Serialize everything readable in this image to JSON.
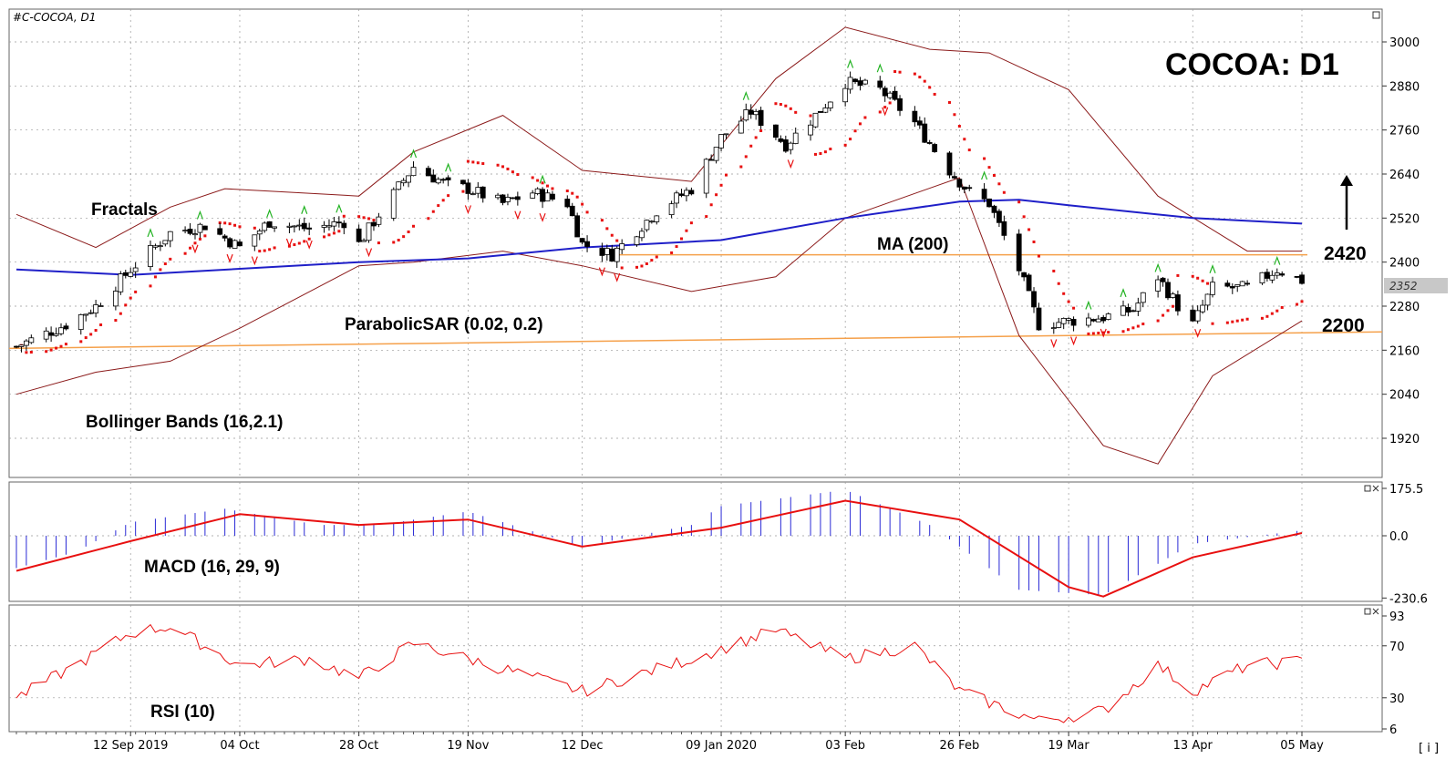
{
  "window": {
    "symbol_label": "#C-COCOA, D1",
    "title": "COCOA: D1",
    "footer_icon_label": "[ i ]"
  },
  "colors": {
    "bull_candle": "#ffffff",
    "bear_candle": "#000000",
    "ma": "#1f1fc8",
    "bollinger": "#8b1a1a",
    "sar": "#e81010",
    "fractal_up": "#22b322",
    "fractal_down": "#e81010",
    "level": "#f5a04a",
    "macd_hist": "#2a2ad6",
    "macd_signal": "#e81010",
    "rsi": "#e81010",
    "arrow": "#000000"
  },
  "annotations": {
    "fractals": "Fractals",
    "ma": "MA (200)",
    "sar": "ParabolicSAR (0.02, 0.2)",
    "bollinger": "Bollinger Bands (16,2.1)",
    "macd": "MACD (16, 29, 9)",
    "rsi": "RSI (10)",
    "resistance": "2420",
    "support": "2200",
    "current_price_tag": "2352"
  },
  "chart_data": [
    {
      "type": "candlestick",
      "panel": "price",
      "symbol": "#C-COCOA",
      "timeframe": "D1",
      "ylim": [
        1820,
        3100
      ],
      "y_ticks": [
        1920,
        2040,
        2160,
        2280,
        2400,
        2520,
        2640,
        2760,
        2880,
        3000
      ],
      "x_ticks": [
        "12 Sep 2019",
        "04 Oct",
        "28 Oct",
        "19 Nov",
        "12 Dec",
        "09 Jan 2020",
        "03 Feb",
        "26 Feb",
        "19 Mar",
        "13 Apr",
        "05 May"
      ],
      "close_anchors": [
        {
          "date": "2019-08-20",
          "close": 2170
        },
        {
          "date": "2019-08-30",
          "close": 2230
        },
        {
          "date": "2019-09-05",
          "close": 2280
        },
        {
          "date": "2019-09-12",
          "close": 2380
        },
        {
          "date": "2019-09-20",
          "close": 2480
        },
        {
          "date": "2019-09-27",
          "close": 2500
        },
        {
          "date": "2019-10-04",
          "close": 2440
        },
        {
          "date": "2019-10-10",
          "close": 2510
        },
        {
          "date": "2019-10-18",
          "close": 2490
        },
        {
          "date": "2019-10-25",
          "close": 2510
        },
        {
          "date": "2019-10-28",
          "close": 2450
        },
        {
          "date": "2019-11-01",
          "close": 2530
        },
        {
          "date": "2019-11-08",
          "close": 2660
        },
        {
          "date": "2019-11-15",
          "close": 2610
        },
        {
          "date": "2019-11-19",
          "close": 2600
        },
        {
          "date": "2019-11-26",
          "close": 2560
        },
        {
          "date": "2019-12-02",
          "close": 2590
        },
        {
          "date": "2019-12-09",
          "close": 2560
        },
        {
          "date": "2019-12-12",
          "close": 2450
        },
        {
          "date": "2019-12-18",
          "close": 2420
        },
        {
          "date": "2019-12-27",
          "close": 2540
        },
        {
          "date": "2020-01-03",
          "close": 2600
        },
        {
          "date": "2020-01-09",
          "close": 2740
        },
        {
          "date": "2020-01-15",
          "close": 2810
        },
        {
          "date": "2020-01-22",
          "close": 2720
        },
        {
          "date": "2020-01-28",
          "close": 2800
        },
        {
          "date": "2020-02-03",
          "close": 2890
        },
        {
          "date": "2020-02-10",
          "close": 2870
        },
        {
          "date": "2020-02-17",
          "close": 2780
        },
        {
          "date": "2020-02-24",
          "close": 2650
        },
        {
          "date": "2020-02-28",
          "close": 2590
        },
        {
          "date": "2020-03-03",
          "close": 2560
        },
        {
          "date": "2020-03-09",
          "close": 2380
        },
        {
          "date": "2020-03-13",
          "close": 2230
        },
        {
          "date": "2020-03-19",
          "close": 2240
        },
        {
          "date": "2020-03-26",
          "close": 2250
        },
        {
          "date": "2020-04-01",
          "close": 2270
        },
        {
          "date": "2020-04-06",
          "close": 2360
        },
        {
          "date": "2020-04-10",
          "close": 2280
        },
        {
          "date": "2020-04-13",
          "close": 2230
        },
        {
          "date": "2020-04-17",
          "close": 2330
        },
        {
          "date": "2020-04-24",
          "close": 2330
        },
        {
          "date": "2020-04-30",
          "close": 2380
        },
        {
          "date": "2020-05-05",
          "close": 2350
        }
      ],
      "ma200": [
        {
          "date": "2019-08-20",
          "value": 2380
        },
        {
          "date": "2019-09-12",
          "value": 2365
        },
        {
          "date": "2019-10-28",
          "value": 2400
        },
        {
          "date": "2019-11-19",
          "value": 2410
        },
        {
          "date": "2019-12-12",
          "value": 2440
        },
        {
          "date": "2020-01-09",
          "value": 2460
        },
        {
          "date": "2020-02-03",
          "value": 2520
        },
        {
          "date": "2020-02-26",
          "value": 2565
        },
        {
          "date": "2020-03-09",
          "value": 2570
        },
        {
          "date": "2020-03-19",
          "value": 2555
        },
        {
          "date": "2020-04-13",
          "value": 2520
        },
        {
          "date": "2020-05-05",
          "value": 2505
        }
      ],
      "bollinger_upper": [
        {
          "date": "2019-08-20",
          "value": 2530
        },
        {
          "date": "2019-09-05",
          "value": 2440
        },
        {
          "date": "2019-09-20",
          "value": 2550
        },
        {
          "date": "2019-10-01",
          "value": 2600
        },
        {
          "date": "2019-10-28",
          "value": 2580
        },
        {
          "date": "2019-11-08",
          "value": 2700
        },
        {
          "date": "2019-11-26",
          "value": 2800
        },
        {
          "date": "2019-12-12",
          "value": 2650
        },
        {
          "date": "2020-01-03",
          "value": 2620
        },
        {
          "date": "2020-01-20",
          "value": 2900
        },
        {
          "date": "2020-02-03",
          "value": 3040
        },
        {
          "date": "2020-02-20",
          "value": 2980
        },
        {
          "date": "2020-03-03",
          "value": 2970
        },
        {
          "date": "2020-03-19",
          "value": 2870
        },
        {
          "date": "2020-04-06",
          "value": 2580
        },
        {
          "date": "2020-04-24",
          "value": 2430
        },
        {
          "date": "2020-05-05",
          "value": 2430
        }
      ],
      "bollinger_lower": [
        {
          "date": "2019-08-20",
          "value": 2040
        },
        {
          "date": "2019-09-05",
          "value": 2100
        },
        {
          "date": "2019-09-20",
          "value": 2130
        },
        {
          "date": "2019-10-04",
          "value": 2220
        },
        {
          "date": "2019-10-28",
          "value": 2390
        },
        {
          "date": "2019-11-08",
          "value": 2400
        },
        {
          "date": "2019-11-26",
          "value": 2430
        },
        {
          "date": "2019-12-12",
          "value": 2390
        },
        {
          "date": "2020-01-03",
          "value": 2320
        },
        {
          "date": "2020-01-20",
          "value": 2360
        },
        {
          "date": "2020-02-03",
          "value": 2520
        },
        {
          "date": "2020-02-26",
          "value": 2630
        },
        {
          "date": "2020-03-09",
          "value": 2200
        },
        {
          "date": "2020-03-26",
          "value": 1900
        },
        {
          "date": "2020-04-06",
          "value": 1850
        },
        {
          "date": "2020-04-17",
          "value": 2090
        },
        {
          "date": "2020-05-05",
          "value": 2240
        }
      ],
      "levels": [
        {
          "name": "resistance",
          "value": 2420
        },
        {
          "name": "support",
          "start": 2165,
          "end": 2210
        }
      ],
      "arrow": "up"
    },
    {
      "type": "histogram+line",
      "panel": "macd",
      "ylim": [
        -230.6,
        175.5
      ],
      "y_ticks": [
        175.5,
        0.0,
        -230.6
      ],
      "hist": [
        {
          "date": "2019-08-20",
          "value": -120
        },
        {
          "date": "2019-09-01",
          "value": -60
        },
        {
          "date": "2019-09-12",
          "value": 50
        },
        {
          "date": "2019-10-01",
          "value": 100
        },
        {
          "date": "2019-10-20",
          "value": 40
        },
        {
          "date": "2019-11-01",
          "value": 40
        },
        {
          "date": "2019-11-19",
          "value": 90
        },
        {
          "date": "2019-12-12",
          "value": -40
        },
        {
          "date": "2020-01-03",
          "value": 40
        },
        {
          "date": "2020-01-09",
          "value": 110
        },
        {
          "date": "2020-02-03",
          "value": 170
        },
        {
          "date": "2020-02-20",
          "value": 40
        },
        {
          "date": "2020-03-09",
          "value": -200
        },
        {
          "date": "2020-03-26",
          "value": -220
        },
        {
          "date": "2020-04-13",
          "value": -30
        },
        {
          "date": "2020-05-05",
          "value": 20
        }
      ],
      "signal": [
        {
          "date": "2019-08-20",
          "value": -130
        },
        {
          "date": "2019-09-12",
          "value": -20
        },
        {
          "date": "2019-10-04",
          "value": 80
        },
        {
          "date": "2019-10-28",
          "value": 40
        },
        {
          "date": "2019-11-19",
          "value": 60
        },
        {
          "date": "2019-12-12",
          "value": -40
        },
        {
          "date": "2020-01-09",
          "value": 30
        },
        {
          "date": "2020-02-03",
          "value": 130
        },
        {
          "date": "2020-02-26",
          "value": 60
        },
        {
          "date": "2020-03-19",
          "value": -190
        },
        {
          "date": "2020-03-26",
          "value": -225
        },
        {
          "date": "2020-04-13",
          "value": -80
        },
        {
          "date": "2020-05-05",
          "value": 10
        }
      ]
    },
    {
      "type": "line",
      "panel": "rsi",
      "ylim": [
        6,
        93
      ],
      "y_ticks": [
        93,
        70,
        30,
        6
      ],
      "values": [
        {
          "date": "2019-08-20",
          "value": 30
        },
        {
          "date": "2019-09-01",
          "value": 55
        },
        {
          "date": "2019-09-12",
          "value": 80
        },
        {
          "date": "2019-09-20",
          "value": 85
        },
        {
          "date": "2019-10-04",
          "value": 55
        },
        {
          "date": "2019-10-18",
          "value": 60
        },
        {
          "date": "2019-10-28",
          "value": 45
        },
        {
          "date": "2019-11-08",
          "value": 72
        },
        {
          "date": "2019-11-19",
          "value": 60
        },
        {
          "date": "2019-12-12",
          "value": 35
        },
        {
          "date": "2020-01-03",
          "value": 60
        },
        {
          "date": "2020-01-20",
          "value": 82
        },
        {
          "date": "2020-02-03",
          "value": 60
        },
        {
          "date": "2020-02-17",
          "value": 70
        },
        {
          "date": "2020-02-26",
          "value": 35
        },
        {
          "date": "2020-03-13",
          "value": 12
        },
        {
          "date": "2020-03-26",
          "value": 20
        },
        {
          "date": "2020-04-06",
          "value": 55
        },
        {
          "date": "2020-04-13",
          "value": 35
        },
        {
          "date": "2020-04-24",
          "value": 55
        },
        {
          "date": "2020-05-05",
          "value": 58
        }
      ]
    }
  ]
}
